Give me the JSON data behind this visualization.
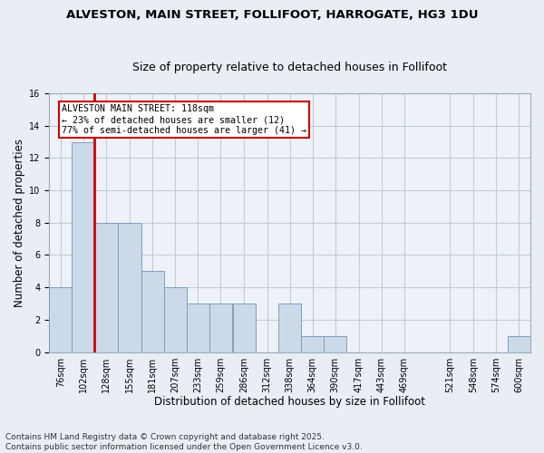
{
  "title1": "ALVESTON, MAIN STREET, FOLLIFOOT, HARROGATE, HG3 1DU",
  "title2": "Size of property relative to detached houses in Follifoot",
  "xlabel": "Distribution of detached houses by size in Follifoot",
  "ylabel": "Number of detached properties",
  "categories": [
    "76sqm",
    "102sqm",
    "128sqm",
    "155sqm",
    "181sqm",
    "207sqm",
    "233sqm",
    "259sqm",
    "286sqm",
    "312sqm",
    "338sqm",
    "364sqm",
    "390sqm",
    "417sqm",
    "443sqm",
    "469sqm",
    "521sqm",
    "548sqm",
    "574sqm",
    "600sqm"
  ],
  "values": [
    4,
    13,
    8,
    8,
    5,
    4,
    3,
    3,
    3,
    0,
    3,
    1,
    1,
    0,
    0,
    0,
    0,
    0,
    0,
    1
  ],
  "bar_color": "#ccd9e8",
  "bar_edgecolor": "#7aa0c0",
  "vline_x_label": "102sqm",
  "vline_color": "#cc0000",
  "annotation_title": "ALVESTON MAIN STREET: 118sqm",
  "annotation_line1": "← 23% of detached houses are smaller (12)",
  "annotation_line2": "77% of semi-detached houses are larger (41) →",
  "annotation_box_color": "white",
  "annotation_box_edgecolor": "#cc0000",
  "ylim": [
    0,
    16
  ],
  "yticks": [
    0,
    2,
    4,
    6,
    8,
    10,
    12,
    14,
    16
  ],
  "bin_width": 26,
  "footnote1": "Contains HM Land Registry data © Crown copyright and database right 2025.",
  "footnote2": "Contains public sector information licensed under the Open Government Licence v3.0.",
  "background_color": "#e8eef4",
  "plot_bg_color": "#eef2f8",
  "grid_color": "#c0ccd8",
  "title_fontsize": 9.5,
  "subtitle_fontsize": 9,
  "tick_fontsize": 7,
  "label_fontsize": 8.5,
  "footnote_fontsize": 6.5
}
